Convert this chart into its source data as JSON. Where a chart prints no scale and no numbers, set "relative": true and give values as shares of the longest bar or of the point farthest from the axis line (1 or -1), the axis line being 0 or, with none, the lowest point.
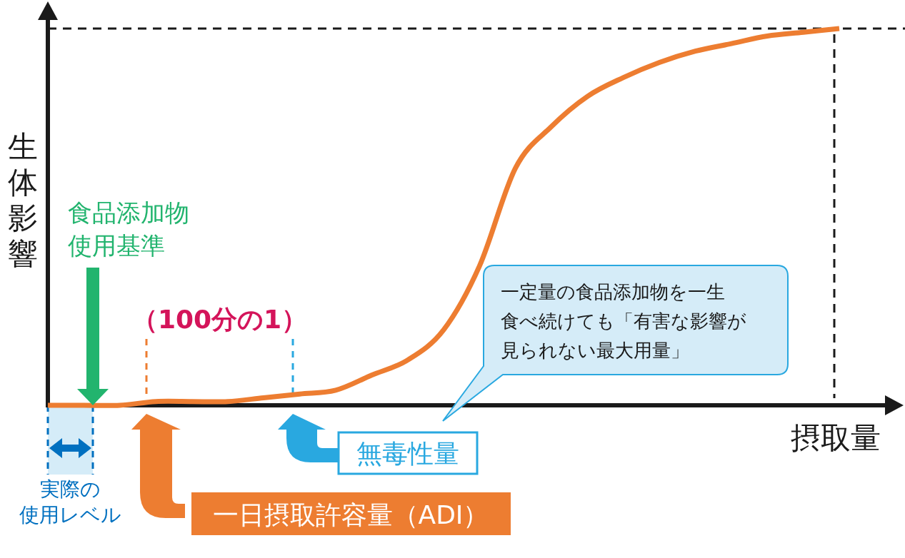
{
  "chart_data": {
    "type": "line",
    "relative": true,
    "xlabel": "摂取量",
    "ylabel": "生体影響",
    "categories": [
      null,
      null,
      null,
      null,
      null,
      null,
      null,
      null,
      null,
      null,
      null,
      null,
      null,
      null,
      null,
      null,
      null,
      null,
      null,
      null,
      null,
      null,
      null
    ],
    "series": [
      {
        "color": "#ed7d31",
        "values": [
          0,
          0,
          0,
          0.01,
          0.01,
          0.01,
          0.02,
          0.03,
          0.04,
          0.08,
          0.12,
          0.2,
          0.37,
          0.63,
          0.74,
          0.82,
          0.87,
          0.91,
          0.94,
          0.96,
          0.98,
          0.99,
          1
        ]
      }
    ],
    "ref_lines": [
      {
        "axis": "y",
        "value": 1,
        "color": "#1a1a1a",
        "line_style": "dashed"
      }
    ],
    "annotations": [
      "実際の使用レベル",
      "食品添加物使用基準",
      "（100分の1）",
      "一日摂取許容量（ADI）",
      "無毒性量",
      "一定量の食品添加物を一生食べ続けても「有害な影響が見られない最大用量」"
    ]
  }
}
